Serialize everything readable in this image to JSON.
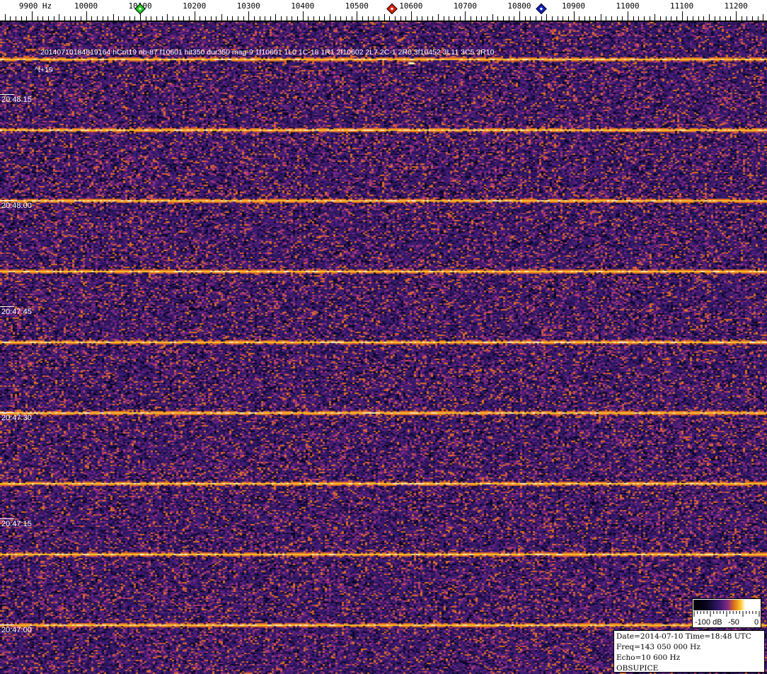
{
  "frequency_scale": {
    "unit": "Hz",
    "labels": [
      {
        "text": "9900  Hz",
        "hz": 9900
      },
      {
        "text": "10000",
        "hz": 10000
      },
      {
        "text": "10100",
        "hz": 10100
      },
      {
        "text": "10200",
        "hz": 10200
      },
      {
        "text": "10300",
        "hz": 10300
      },
      {
        "text": "10400",
        "hz": 10400
      },
      {
        "text": "10500",
        "hz": 10500
      },
      {
        "text": "10600",
        "hz": 10600
      },
      {
        "text": "10700",
        "hz": 10700
      },
      {
        "text": "10800",
        "hz": 10800
      },
      {
        "text": "10900",
        "hz": 10900
      },
      {
        "text": "11000",
        "hz": 11000
      },
      {
        "text": "11100",
        "hz": 11100
      },
      {
        "text": "11200",
        "hz": 11200
      }
    ],
    "markers": [
      {
        "name": "green-marker",
        "hz": 10100,
        "color": "#22cc22"
      },
      {
        "name": "red-marker",
        "hz": 10565,
        "color": "#dd2211"
      },
      {
        "name": "blue-marker",
        "hz": 10840,
        "color": "#1122bb"
      }
    ]
  },
  "waterfall": {
    "event_text": "20140710184819164 hCnt19 nb-87 f10601 hit350 dur350 mag-9 1f10601 1L0 1C-18 1R1 2f10602 2L7 2C-1 2R6 3f10452 3L11 3C5 3R10",
    "offset_text": "^t+19",
    "time_labels": [
      "20:48:15",
      "20:48:00",
      "20:47:45",
      "20:47:30",
      "20:47:15",
      "20:47:00"
    ],
    "background_color": "#3b1c6b",
    "signal_color": "#ffc020"
  },
  "colorbar": {
    "labels": [
      "-100 dB",
      "-50",
      "0"
    ],
    "range_db": [
      -100,
      0
    ]
  },
  "info": {
    "date_line": "Date=2014-07-10 Time=18:48 UTC",
    "freq_line": "Freq=143 050 000 Hz",
    "echo_line": "Echo=10 600 Hz",
    "station": "OBSUPICE"
  }
}
